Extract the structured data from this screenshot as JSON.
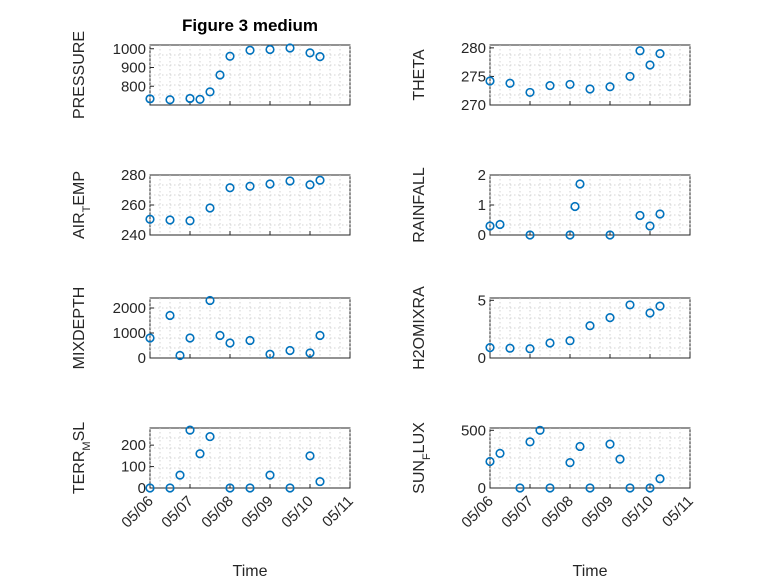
{
  "figure": {
    "title": "Figure 3 medium",
    "marker_color": "#0072BD"
  },
  "chart_data": [
    {
      "type": "scatter",
      "ylabel": "PRESSURE",
      "ylim": [
        700,
        1020
      ],
      "yticks": [
        800,
        900,
        1000
      ],
      "x": [
        "05/06",
        "05/06 12:00",
        "05/07",
        "05/07 06:00",
        "05/07 12:00",
        "05/07 18:00",
        "05/08",
        "05/08 12:00",
        "05/09",
        "05/09 12:00",
        "05/10",
        "05/10 06:00"
      ],
      "y": [
        733,
        728,
        735,
        730,
        770,
        860,
        960,
        992,
        996,
        1004,
        978,
        958
      ]
    },
    {
      "type": "scatter",
      "ylabel": "THETA",
      "ylim": [
        270,
        280.5
      ],
      "yticks": [
        270,
        275,
        280
      ],
      "x": [
        "05/06",
        "05/06 12:00",
        "05/07",
        "05/07 12:00",
        "05/08",
        "05/08 12:00",
        "05/09",
        "05/09 12:00",
        "05/09 18:00",
        "05/10",
        "05/10 06:00"
      ],
      "y": [
        274.2,
        273.8,
        272.2,
        273.4,
        273.6,
        272.8,
        273.2,
        275.0,
        279.5,
        277.0,
        279.0
      ]
    },
    {
      "type": "scatter",
      "ylabel": "AIR_TEMP",
      "ylim": [
        240,
        280
      ],
      "yticks": [
        240,
        260,
        280
      ],
      "x": [
        "05/06",
        "05/06 12:00",
        "05/07",
        "05/07 12:00",
        "05/08",
        "05/08 12:00",
        "05/09",
        "05/09 12:00",
        "05/10",
        "05/10 06:00"
      ],
      "y": [
        250.5,
        250.0,
        249.5,
        258.0,
        271.5,
        272.5,
        274.0,
        276.0,
        273.5,
        276.5
      ]
    },
    {
      "type": "scatter",
      "ylabel": "RAINFALL",
      "ylim": [
        0,
        2
      ],
      "yticks": [
        0,
        1,
        2
      ],
      "x": [
        "05/06",
        "05/06 06:00",
        "05/07",
        "05/08",
        "05/08 03:00",
        "05/08 06:00",
        "05/09",
        "05/09 18:00",
        "05/10",
        "05/10 06:00"
      ],
      "y": [
        0.3,
        0.35,
        0,
        0,
        0.95,
        1.7,
        0,
        0.65,
        0.3,
        0.7
      ]
    },
    {
      "type": "scatter",
      "ylabel": "MIXDEPTH",
      "ylim": [
        0,
        2400
      ],
      "yticks": [
        0,
        1000,
        2000
      ],
      "x": [
        "05/06",
        "05/06 12:00",
        "05/06 18:00",
        "05/07",
        "05/07 12:00",
        "05/07 18:00",
        "05/08",
        "05/08 12:00",
        "05/09",
        "05/09 12:00",
        "05/10",
        "05/10 06:00"
      ],
      "y": [
        800,
        1700,
        100,
        800,
        2300,
        900,
        600,
        700,
        150,
        300,
        200,
        900
      ]
    },
    {
      "type": "scatter",
      "ylabel": "H2OMIXRA",
      "ylim": [
        0,
        5.2
      ],
      "yticks": [
        0,
        5
      ],
      "x": [
        "05/06",
        "05/06 12:00",
        "05/07",
        "05/07 12:00",
        "05/08",
        "05/08 12:00",
        "05/09",
        "05/09 12:00",
        "05/10",
        "05/10 06:00"
      ],
      "y": [
        0.9,
        0.85,
        0.8,
        1.3,
        1.5,
        2.8,
        3.5,
        4.6,
        3.9,
        4.5
      ]
    },
    {
      "type": "scatter",
      "ylabel": "TERR_MSL",
      "ylim": [
        0,
        280
      ],
      "yticks": [
        0,
        100,
        200
      ],
      "x": [
        "05/06",
        "05/06 12:00",
        "05/06 18:00",
        "05/07",
        "05/07 06:00",
        "05/07 12:00",
        "05/08",
        "05/08 12:00",
        "05/09",
        "05/09 12:00",
        "05/10",
        "05/10 06:00"
      ],
      "y": [
        0,
        0,
        60,
        270,
        160,
        240,
        0,
        0,
        60,
        0,
        150,
        30
      ]
    },
    {
      "type": "scatter",
      "ylabel": "SUN_FLUX",
      "ylim": [
        0,
        520
      ],
      "yticks": [
        0,
        500
      ],
      "x": [
        "05/06",
        "05/06 06:00",
        "05/06 18:00",
        "05/07",
        "05/07 06:00",
        "05/07 12:00",
        "05/08",
        "05/08 06:00",
        "05/08 12:00",
        "05/09",
        "05/09 06:00",
        "05/09 12:00",
        "05/10",
        "05/10 06:00"
      ],
      "y": [
        230,
        300,
        0,
        400,
        500,
        0,
        220,
        360,
        0,
        380,
        250,
        0,
        0,
        80
      ]
    }
  ],
  "axes": {
    "xticks": [
      "05/06",
      "05/07",
      "05/08",
      "05/09",
      "05/10",
      "05/11"
    ],
    "xlabel": "Time"
  }
}
